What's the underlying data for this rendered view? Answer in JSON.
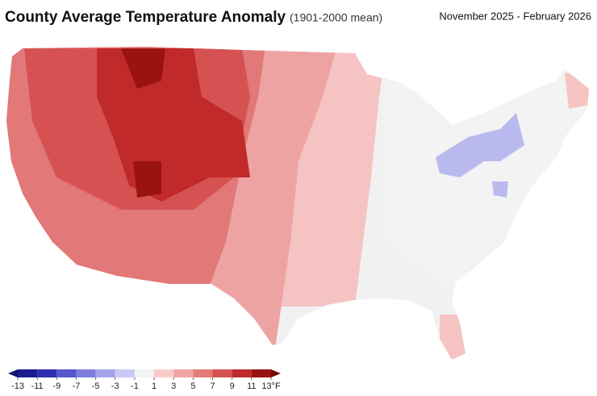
{
  "header": {
    "title": "County Average Temperature Anomaly",
    "subtitle": "(1901-2000 mean)",
    "period": "November 2025 - February 2026"
  },
  "legend": {
    "ticks": [
      -13,
      -11,
      -9,
      -7,
      -5,
      -3,
      -1,
      1,
      3,
      5,
      7,
      9,
      11,
      {
        "value": 13,
        "label": "13°F"
      }
    ],
    "colors": [
      "#1c1c8f",
      "#2e2eb3",
      "#5656cf",
      "#7e7ee0",
      "#a4a4ec",
      "#c9c9f5",
      "#f3f3f3",
      "#f8caca",
      "#efa3a3",
      "#e47a7a",
      "#d65252",
      "#bf2a2a",
      "#9a1212"
    ],
    "under_color": "#14146e",
    "over_color": "#760808"
  }
}
